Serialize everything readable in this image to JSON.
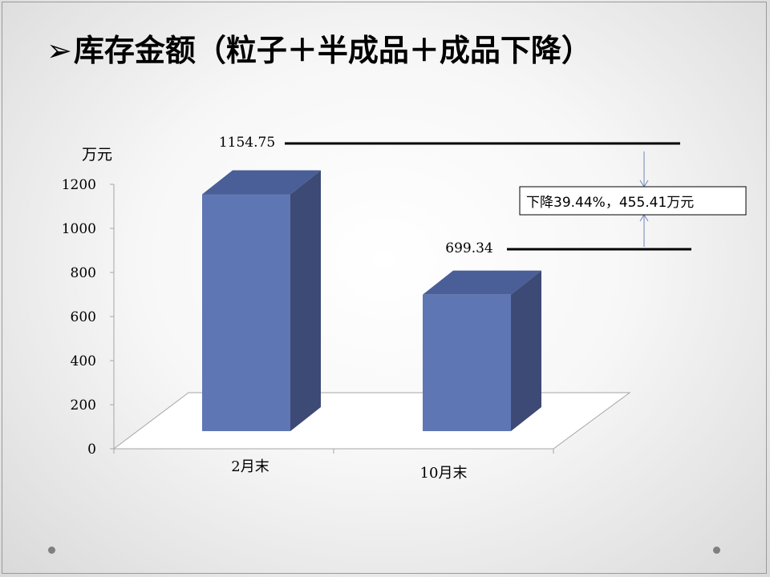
{
  "slide": {
    "title_marker": "➢",
    "title": "库存金额（粒子＋半成品＋成品下降）",
    "note": "下降39.44%，455.41万元"
  },
  "chart_data": {
    "type": "bar",
    "ylabel": "万元",
    "ylim": [
      0,
      1200
    ],
    "yticks": [
      0,
      200,
      400,
      600,
      800,
      1000,
      1200
    ],
    "ytick_labels": [
      "0",
      "200",
      "400",
      "600",
      "800",
      "1000",
      "1200"
    ],
    "categories": [
      "2月末",
      "10月末"
    ],
    "values": [
      1154.75,
      699.34
    ],
    "value_labels": [
      "1154.75",
      "699.34"
    ],
    "style_3d": true,
    "colors": {
      "front": "#5f76b5",
      "top": "#4a5e97",
      "side": "#3d4a75"
    }
  }
}
